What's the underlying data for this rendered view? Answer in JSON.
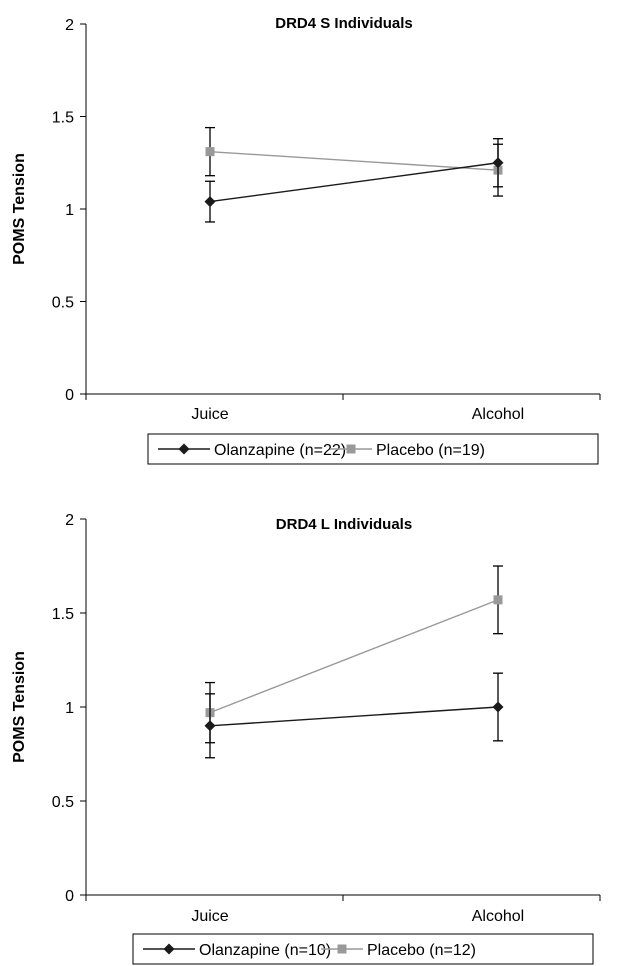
{
  "chart_data": [
    {
      "type": "line",
      "title": "DRD4 S Individuals",
      "xlabel": "",
      "ylabel": "POMS Tension",
      "categories": [
        "Juice",
        "Alcohol"
      ],
      "ylim": [
        0,
        2
      ],
      "yticks": [
        "0",
        "0.5",
        "1",
        "1.5",
        "2"
      ],
      "grid": false,
      "legend_position": "bottom",
      "series": [
        {
          "name": "Olanzapine (n=22)",
          "values": [
            1.04,
            1.25
          ],
          "error": [
            0.11,
            0.13
          ],
          "color": "#1a1a1a",
          "marker": "diamond"
        },
        {
          "name": "Placebo (n=19)",
          "values": [
            1.31,
            1.21
          ],
          "error": [
            0.13,
            0.14
          ],
          "color": "#999999",
          "marker": "square"
        }
      ]
    },
    {
      "type": "line",
      "title": "DRD4 L Individuals",
      "xlabel": "",
      "ylabel": "POMS Tension",
      "categories": [
        "Juice",
        "Alcohol"
      ],
      "ylim": [
        0,
        2
      ],
      "yticks": [
        "0",
        "0.5",
        "1",
        "1.5",
        "2"
      ],
      "grid": false,
      "legend_position": "bottom",
      "series": [
        {
          "name": "Olanzapine (n=10)",
          "values": [
            0.9,
            1.0
          ],
          "error": [
            0.17,
            0.18
          ],
          "color": "#1a1a1a",
          "marker": "diamond"
        },
        {
          "name": "Placebo (n=12)",
          "values": [
            0.97,
            1.57
          ],
          "error": [
            0.16,
            0.18
          ],
          "color": "#999999",
          "marker": "square"
        }
      ]
    }
  ]
}
